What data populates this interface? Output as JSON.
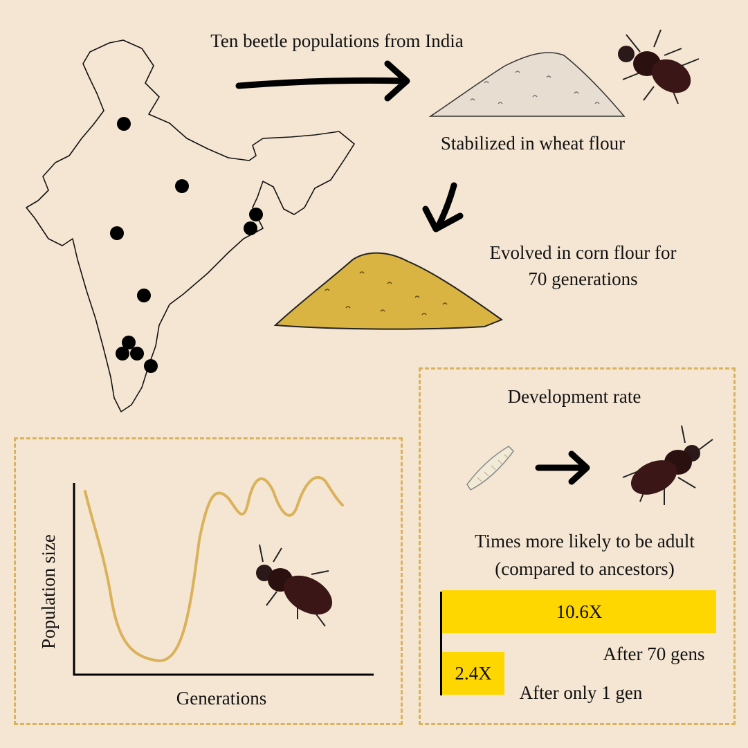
{
  "colors": {
    "background": "#f5e6d3",
    "accent_gold": "#d9b25a",
    "bar_yellow": "#ffd700",
    "beetle": "#3a1616"
  },
  "header": {
    "title": "Ten beetle populations from India"
  },
  "wheat": {
    "label": "Stabilized in wheat flour"
  },
  "corn": {
    "label_line1": "Evolved in corn flour for",
    "label_line2": "70 generations"
  },
  "population_chart": {
    "xlabel": "Generations",
    "ylabel": "Population size"
  },
  "development": {
    "title": "Development rate",
    "likely_line1": "Times more likely to be adult",
    "likely_line2": "(compared to ancestors)"
  },
  "chart_data": {
    "type": "bar",
    "orientation": "horizontal",
    "categories": [
      "After 70 gens",
      "After only 1 gen"
    ],
    "values": [
      10.6,
      2.4
    ],
    "data_labels": [
      "10.6X",
      "2.4X"
    ]
  },
  "icons": [
    "india-map-icon",
    "wheat-flour-pile-icon",
    "corn-flour-pile-icon",
    "beetle-icon",
    "larva-icon",
    "arrow-icon"
  ]
}
